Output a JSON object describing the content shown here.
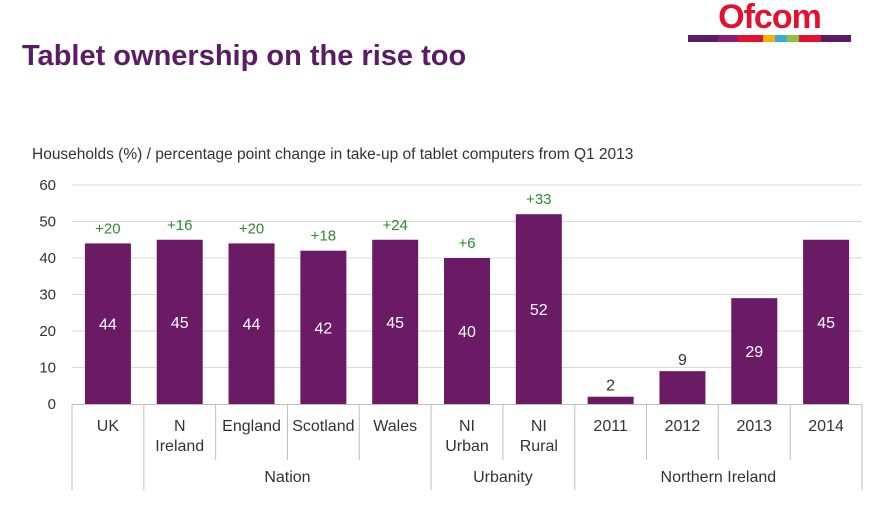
{
  "title": "Tablet ownership on the rise too",
  "logo": {
    "text": "Ofcom",
    "colors": [
      "#5a1c64",
      "#8a1e6f",
      "#e3112f",
      "#f9b000",
      "#3aa9e0",
      "#8fc03e",
      "#e3112f",
      "#5a1c64"
    ]
  },
  "colors": {
    "bar": "#6b1b66",
    "change_label": "#2e8b2e",
    "value_label": "#ffffff",
    "grid": "#d9d9d9",
    "axis_text": "#333333"
  },
  "chart_data": {
    "type": "bar",
    "title": "Households (%) / percentage point change in take-up of tablet computers from Q1 2013",
    "ylim": [
      0,
      60
    ],
    "yticks": [
      0,
      10,
      20,
      30,
      40,
      50,
      60
    ],
    "grid": true,
    "categories": [
      {
        "label": [
          "UK"
        ],
        "value": 44,
        "change": "+20"
      },
      {
        "label": [
          "N",
          "Ireland"
        ],
        "value": 45,
        "change": "+16"
      },
      {
        "label": [
          "England"
        ],
        "value": 44,
        "change": "+20"
      },
      {
        "label": [
          "Scotland"
        ],
        "value": 42,
        "change": "+18"
      },
      {
        "label": [
          "Wales"
        ],
        "value": 45,
        "change": "+24"
      },
      {
        "label": [
          "NI",
          "Urban"
        ],
        "value": 40,
        "change": "+6"
      },
      {
        "label": [
          "NI",
          "Rural"
        ],
        "value": 52,
        "change": "+33"
      },
      {
        "label": [
          "2011"
        ],
        "value": 2,
        "change": ""
      },
      {
        "label": [
          "2012"
        ],
        "value": 9,
        "change": ""
      },
      {
        "label": [
          "2013"
        ],
        "value": 29,
        "change": ""
      },
      {
        "label": [
          "2014"
        ],
        "value": 45,
        "change": ""
      }
    ],
    "groups": [
      {
        "name": "Nation",
        "start": 1,
        "end": 4
      },
      {
        "name": "Urbanity",
        "start": 5,
        "end": 6
      },
      {
        "name": "Northern Ireland",
        "start": 7,
        "end": 10
      }
    ]
  }
}
